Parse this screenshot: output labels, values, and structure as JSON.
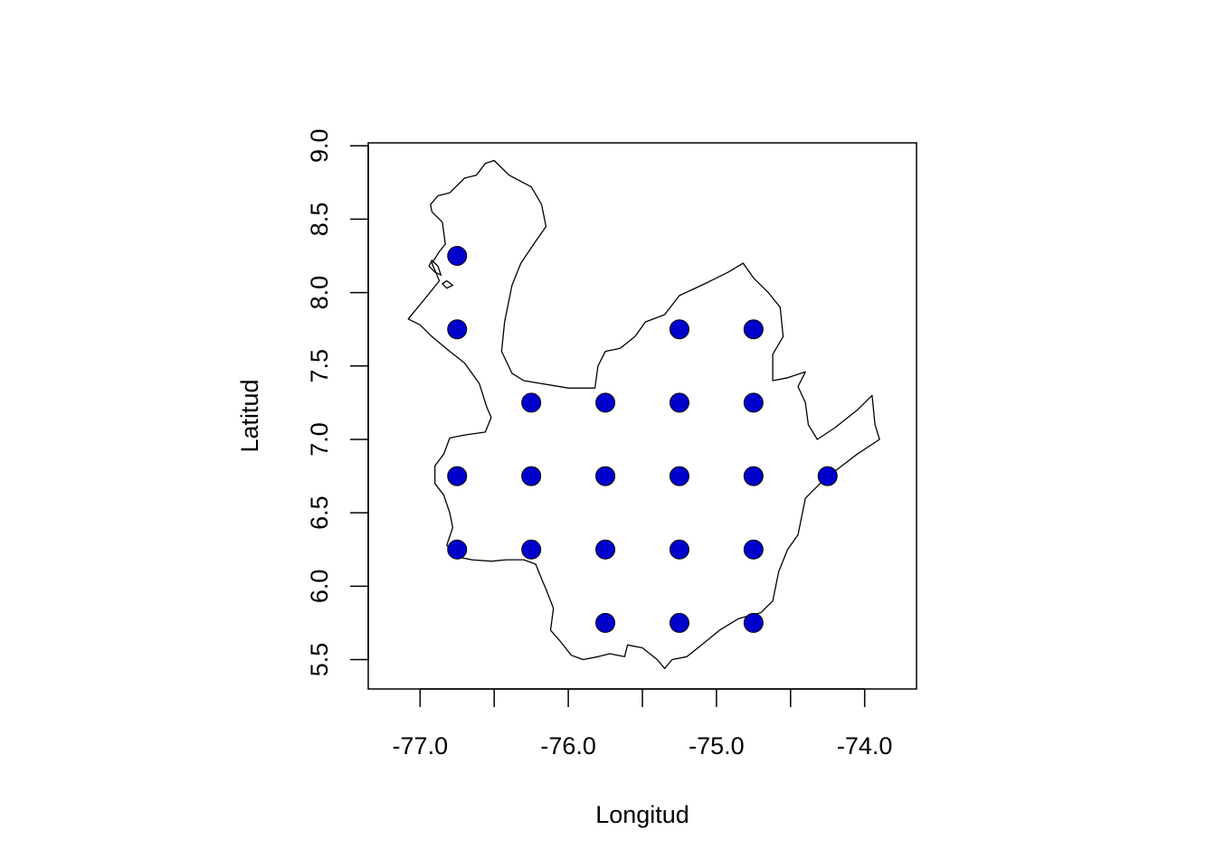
{
  "chart_data": {
    "type": "scatter",
    "xlabel": "Longitud",
    "ylabel": "Latitud",
    "xlim": [
      -77.35,
      -73.65
    ],
    "ylim": [
      5.3,
      9.02
    ],
    "x_ticks": [
      -77.0,
      -76.5,
      -76.0,
      -75.5,
      -75.0,
      -74.5,
      -74.0
    ],
    "x_tick_labels": [
      "-77.0",
      "",
      "-76.0",
      "",
      "-75.0",
      "",
      "-74.0"
    ],
    "y_ticks": [
      5.5,
      6.0,
      6.5,
      7.0,
      7.5,
      8.0,
      8.5,
      9.0
    ],
    "y_tick_labels": [
      "5.5",
      "6.0",
      "6.5",
      "7.0",
      "7.5",
      "8.0",
      "8.5",
      "9.0"
    ],
    "grid": false,
    "point_color": "#0000cd",
    "point_edge_color": "#000000",
    "outline_color": "#000000",
    "points": [
      {
        "x": -76.75,
        "y": 8.25
      },
      {
        "x": -76.75,
        "y": 7.75
      },
      {
        "x": -75.25,
        "y": 7.75
      },
      {
        "x": -74.75,
        "y": 7.75
      },
      {
        "x": -76.25,
        "y": 7.25
      },
      {
        "x": -75.75,
        "y": 7.25
      },
      {
        "x": -75.25,
        "y": 7.25
      },
      {
        "x": -74.75,
        "y": 7.25
      },
      {
        "x": -76.75,
        "y": 6.75
      },
      {
        "x": -76.25,
        "y": 6.75
      },
      {
        "x": -75.75,
        "y": 6.75
      },
      {
        "x": -75.25,
        "y": 6.75
      },
      {
        "x": -74.75,
        "y": 6.75
      },
      {
        "x": -74.25,
        "y": 6.75
      },
      {
        "x": -76.75,
        "y": 6.25
      },
      {
        "x": -76.25,
        "y": 6.25
      },
      {
        "x": -75.75,
        "y": 6.25
      },
      {
        "x": -75.25,
        "y": 6.25
      },
      {
        "x": -74.75,
        "y": 6.25
      },
      {
        "x": -75.75,
        "y": 5.75
      },
      {
        "x": -75.25,
        "y": 5.75
      },
      {
        "x": -74.75,
        "y": 5.75
      }
    ],
    "boundary": [
      [
        -76.56,
        8.88
      ],
      [
        -76.62,
        8.8
      ],
      [
        -76.7,
        8.78
      ],
      [
        -76.8,
        8.68
      ],
      [
        -76.88,
        8.66
      ],
      [
        -76.93,
        8.6
      ],
      [
        -76.92,
        8.55
      ],
      [
        -76.85,
        8.48
      ],
      [
        -76.83,
        8.33
      ],
      [
        -76.87,
        8.28
      ],
      [
        -76.92,
        8.2
      ],
      [
        -76.87,
        8.08
      ],
      [
        -76.95,
        7.98
      ],
      [
        -77.08,
        7.82
      ],
      [
        -77.0,
        7.78
      ],
      [
        -76.92,
        7.7
      ],
      [
        -76.8,
        7.6
      ],
      [
        -76.7,
        7.52
      ],
      [
        -76.6,
        7.38
      ],
      [
        -76.55,
        7.22
      ],
      [
        -76.52,
        7.15
      ],
      [
        -76.56,
        7.05
      ],
      [
        -76.7,
        7.03
      ],
      [
        -76.8,
        7.01
      ],
      [
        -76.84,
        6.9
      ],
      [
        -76.9,
        6.82
      ],
      [
        -76.9,
        6.7
      ],
      [
        -76.84,
        6.62
      ],
      [
        -76.8,
        6.5
      ],
      [
        -76.78,
        6.4
      ],
      [
        -76.82,
        6.28
      ],
      [
        -76.75,
        6.2
      ],
      [
        -76.65,
        6.18
      ],
      [
        -76.52,
        6.17
      ],
      [
        -76.42,
        6.18
      ],
      [
        -76.3,
        6.18
      ],
      [
        -76.22,
        6.15
      ],
      [
        -76.18,
        6.05
      ],
      [
        -76.15,
        5.98
      ],
      [
        -76.1,
        5.85
      ],
      [
        -76.12,
        5.7
      ],
      [
        -76.05,
        5.62
      ],
      [
        -75.98,
        5.53
      ],
      [
        -75.9,
        5.5
      ],
      [
        -75.8,
        5.52
      ],
      [
        -75.72,
        5.54
      ],
      [
        -75.62,
        5.52
      ],
      [
        -75.6,
        5.6
      ],
      [
        -75.5,
        5.58
      ],
      [
        -75.4,
        5.5
      ],
      [
        -75.35,
        5.44
      ],
      [
        -75.3,
        5.5
      ],
      [
        -75.2,
        5.52
      ],
      [
        -75.1,
        5.6
      ],
      [
        -74.98,
        5.7
      ],
      [
        -74.85,
        5.78
      ],
      [
        -74.7,
        5.82
      ],
      [
        -74.62,
        5.9
      ],
      [
        -74.6,
        6.0
      ],
      [
        -74.58,
        6.1
      ],
      [
        -74.52,
        6.25
      ],
      [
        -74.45,
        6.35
      ],
      [
        -74.42,
        6.5
      ],
      [
        -74.4,
        6.6
      ],
      [
        -74.3,
        6.7
      ],
      [
        -74.18,
        6.8
      ],
      [
        -74.05,
        6.9
      ],
      [
        -73.9,
        7.0
      ],
      [
        -73.93,
        7.1
      ],
      [
        -73.95,
        7.3
      ],
      [
        -74.05,
        7.2
      ],
      [
        -74.2,
        7.08
      ],
      [
        -74.32,
        7.0
      ],
      [
        -74.38,
        7.1
      ],
      [
        -74.4,
        7.25
      ],
      [
        -74.45,
        7.36
      ],
      [
        -74.4,
        7.46
      ],
      [
        -74.52,
        7.42
      ],
      [
        -74.62,
        7.4
      ],
      [
        -74.62,
        7.58
      ],
      [
        -74.55,
        7.7
      ],
      [
        -74.57,
        7.9
      ],
      [
        -74.65,
        8.0
      ],
      [
        -74.75,
        8.1
      ],
      [
        -74.82,
        8.2
      ],
      [
        -74.92,
        8.14
      ],
      [
        -75.0,
        8.1
      ],
      [
        -75.1,
        8.05
      ],
      [
        -75.25,
        7.98
      ],
      [
        -75.35,
        7.85
      ],
      [
        -75.48,
        7.8
      ],
      [
        -75.55,
        7.7
      ],
      [
        -75.65,
        7.62
      ],
      [
        -75.75,
        7.6
      ],
      [
        -75.8,
        7.5
      ],
      [
        -75.82,
        7.35
      ],
      [
        -76.0,
        7.35
      ],
      [
        -76.3,
        7.4
      ],
      [
        -76.38,
        7.45
      ],
      [
        -76.45,
        7.6
      ],
      [
        -76.43,
        7.8
      ],
      [
        -76.38,
        8.05
      ],
      [
        -76.32,
        8.2
      ],
      [
        -76.22,
        8.35
      ],
      [
        -76.15,
        8.45
      ],
      [
        -76.18,
        8.6
      ],
      [
        -76.25,
        8.72
      ],
      [
        -76.4,
        8.8
      ],
      [
        -76.5,
        8.9
      ],
      [
        -76.56,
        8.88
      ]
    ],
    "islands": [
      [
        [
          -76.92,
          8.22
        ],
        [
          -76.88,
          8.18
        ],
        [
          -76.86,
          8.12
        ],
        [
          -76.9,
          8.14
        ],
        [
          -76.94,
          8.18
        ],
        [
          -76.92,
          8.22
        ]
      ],
      [
        [
          -76.82,
          8.08
        ],
        [
          -76.78,
          8.05
        ],
        [
          -76.82,
          8.03
        ],
        [
          -76.85,
          8.06
        ],
        [
          -76.82,
          8.08
        ]
      ]
    ]
  }
}
